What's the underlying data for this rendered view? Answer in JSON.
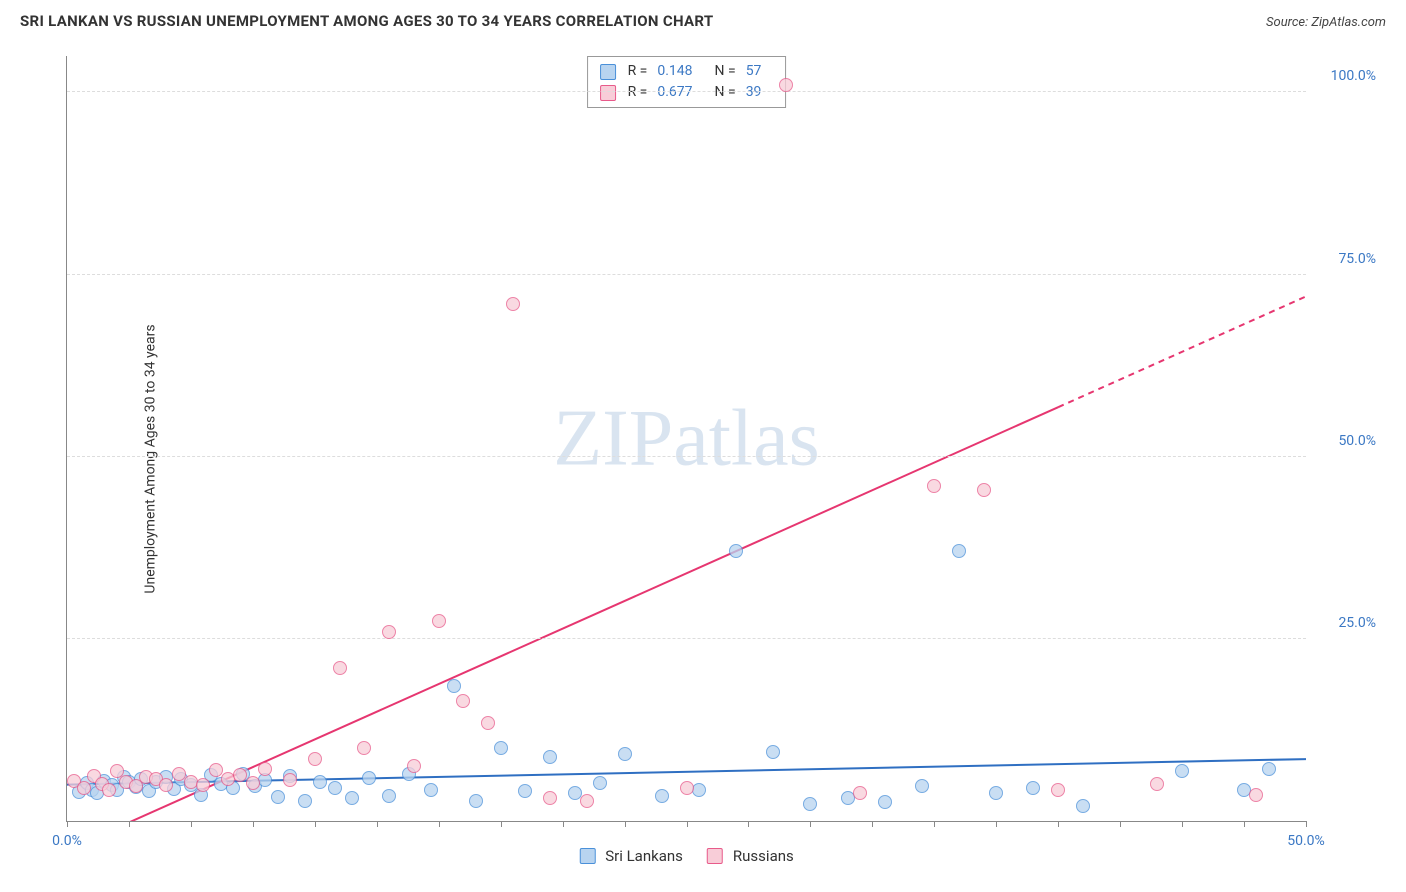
{
  "title": "SRI LANKAN VS RUSSIAN UNEMPLOYMENT AMONG AGES 30 TO 34 YEARS CORRELATION CHART",
  "source": "Source: ZipAtlas.com",
  "ylabel": "Unemployment Among Ages 30 to 34 years",
  "watermark": "ZIPatlas",
  "chart": {
    "type": "scatter",
    "xlim": [
      0,
      50
    ],
    "ylim": [
      0,
      105
    ],
    "x_ticks_minor_step": 2.5,
    "x_ticks": [
      {
        "v": 0,
        "label": "0.0%",
        "color": "#3b78c4"
      },
      {
        "v": 50,
        "label": "50.0%",
        "color": "#3b78c4"
      }
    ],
    "y_ticks": [
      {
        "v": 25,
        "label": "25.0%",
        "color": "#3b78c4"
      },
      {
        "v": 50,
        "label": "50.0%",
        "color": "#3b78c4"
      },
      {
        "v": 75,
        "label": "75.0%",
        "color": "#3b78c4"
      },
      {
        "v": 100,
        "label": "100.0%",
        "color": "#3b78c4"
      }
    ],
    "grid_color": "#dddddd",
    "axis_color": "#888888",
    "background": "#ffffff"
  },
  "series": {
    "sri_lankans": {
      "label": "Sri Lankans",
      "fill": "#b8d4f0",
      "stroke": "#4a90d9",
      "marker_radius": 7,
      "trend": {
        "x1": 0,
        "y1": 5,
        "x2": 50,
        "y2": 8.5,
        "color": "#2f6fc2",
        "width": 2
      },
      "stats": {
        "R": "0.148",
        "N": "57"
      },
      "points": [
        [
          0.5,
          4
        ],
        [
          0.8,
          5.2
        ],
        [
          1,
          4.3
        ],
        [
          1.2,
          3.8
        ],
        [
          1.5,
          5.5
        ],
        [
          1.8,
          5
        ],
        [
          2,
          4.2
        ],
        [
          2.3,
          6
        ],
        [
          2.5,
          5.4
        ],
        [
          2.8,
          4.7
        ],
        [
          3,
          5.8
        ],
        [
          3.3,
          4.1
        ],
        [
          3.6,
          5.3
        ],
        [
          4,
          6.1
        ],
        [
          4.3,
          4.4
        ],
        [
          4.6,
          5.7
        ],
        [
          5,
          4.9
        ],
        [
          5.4,
          3.6
        ],
        [
          5.8,
          6.3
        ],
        [
          6.2,
          5.1
        ],
        [
          6.7,
          4.5
        ],
        [
          7.1,
          6.5
        ],
        [
          7.6,
          4.8
        ],
        [
          8,
          5.6
        ],
        [
          8.5,
          3.3
        ],
        [
          9,
          6.2
        ],
        [
          9.6,
          2.8
        ],
        [
          10.2,
          5.4
        ],
        [
          10.8,
          4.6
        ],
        [
          11.5,
          3.1
        ],
        [
          12.2,
          5.9
        ],
        [
          13,
          3.4
        ],
        [
          13.8,
          6.4
        ],
        [
          14.7,
          4.2
        ],
        [
          15.6,
          18.5
        ],
        [
          16.5,
          2.7
        ],
        [
          17.5,
          10
        ],
        [
          18.5,
          4.1
        ],
        [
          19.5,
          8.8
        ],
        [
          20.5,
          3.8
        ],
        [
          21.5,
          5.2
        ],
        [
          22.5,
          9.2
        ],
        [
          24,
          3.5
        ],
        [
          25.5,
          4.3
        ],
        [
          27,
          37
        ],
        [
          28.5,
          9.5
        ],
        [
          30,
          2.4
        ],
        [
          31.5,
          3.2
        ],
        [
          33,
          2.6
        ],
        [
          34.5,
          4.8
        ],
        [
          36,
          37
        ],
        [
          37.5,
          3.9
        ],
        [
          39,
          4.6
        ],
        [
          41,
          2.1
        ],
        [
          45,
          6.8
        ],
        [
          47.5,
          4.2
        ],
        [
          48.5,
          7.1
        ]
      ]
    },
    "russians": {
      "label": "Russians",
      "fill": "#f8cdd8",
      "stroke": "#e85a8a",
      "marker_radius": 7,
      "trend": {
        "x1": 0,
        "y1": -4,
        "x2": 50,
        "y2": 72,
        "color": "#e63670",
        "width": 2,
        "dash_after_x": 40
      },
      "stats": {
        "R": "0.677",
        "N": "39"
      },
      "points": [
        [
          0.3,
          5.5
        ],
        [
          0.7,
          4.6
        ],
        [
          1.1,
          6.2
        ],
        [
          1.4,
          5.1
        ],
        [
          1.7,
          4.3
        ],
        [
          2,
          6.8
        ],
        [
          2.4,
          5.4
        ],
        [
          2.8,
          4.8
        ],
        [
          3.2,
          6.1
        ],
        [
          3.6,
          5.7
        ],
        [
          4,
          5
        ],
        [
          4.5,
          6.5
        ],
        [
          5,
          5.3
        ],
        [
          5.5,
          4.9
        ],
        [
          6,
          7
        ],
        [
          6.5,
          5.8
        ],
        [
          7,
          6.3
        ],
        [
          7.5,
          5.2
        ],
        [
          8,
          7.2
        ],
        [
          9,
          5.6
        ],
        [
          10,
          8.5
        ],
        [
          11,
          21
        ],
        [
          12,
          10
        ],
        [
          13,
          26
        ],
        [
          14,
          7.5
        ],
        [
          15,
          27.5
        ],
        [
          16,
          16.5
        ],
        [
          17,
          13.5
        ],
        [
          18,
          71
        ],
        [
          19.5,
          3.2
        ],
        [
          21,
          2.8
        ],
        [
          25,
          4.5
        ],
        [
          29,
          101
        ],
        [
          32,
          3.8
        ],
        [
          35,
          46
        ],
        [
          37,
          45.5
        ],
        [
          40,
          4.2
        ],
        [
          44,
          5.1
        ],
        [
          48,
          3.6
        ]
      ]
    }
  },
  "legend_bottom": [
    {
      "key": "sri_lankans"
    },
    {
      "key": "russians"
    }
  ]
}
